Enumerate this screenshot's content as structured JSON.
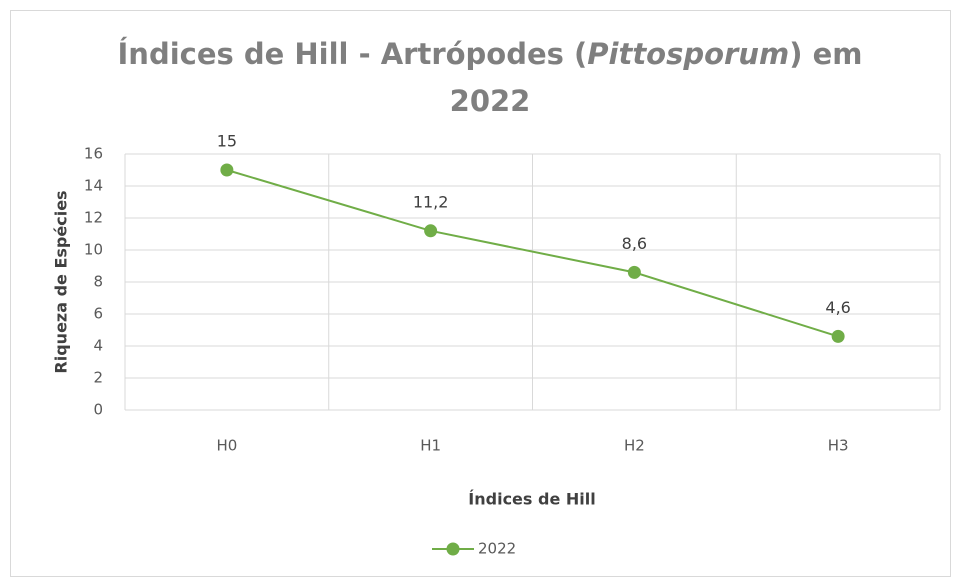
{
  "chart_data": {
    "type": "line",
    "title_parts": [
      "Índices de Hill - Artrópodes (",
      "Pittosporum",
      ") em",
      "2022"
    ],
    "x_label": "Índices de Hill",
    "y_label": "Riqueza de Espécies",
    "categories": [
      "H0",
      "H1",
      "H2",
      "H3"
    ],
    "series": [
      {
        "name": "2022",
        "color": "#70ad47",
        "values": [
          15,
          11.2,
          8.6,
          4.6
        ],
        "value_labels": [
          "15",
          "11,2",
          "8,6",
          "4,6"
        ]
      }
    ],
    "ylim": [
      0,
      16
    ],
    "yticks": [
      0,
      2,
      4,
      6,
      8,
      10,
      12,
      14,
      16
    ],
    "grid": true,
    "legend": "bottom"
  }
}
